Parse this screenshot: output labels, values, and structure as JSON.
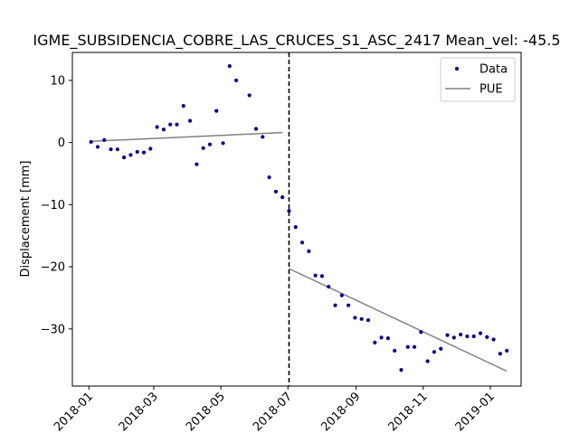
{
  "chart_data": {
    "type": "scatter",
    "title": "IGME_SUBSIDENCIA_COBRE_LAS_CRUCES_S1_ASC_2417     Mean_vel: -45.5",
    "xlabel": "",
    "ylabel": "Displacement [mm]",
    "x_ticks": [
      "2018-01",
      "2018-03",
      "2018-05",
      "2018-07",
      "2018-09",
      "2018-11",
      "2019-01"
    ],
    "y_ticks": [
      10,
      0,
      -10,
      -20,
      -30
    ],
    "xlim": [
      "2017-12-17",
      "2019-01-29"
    ],
    "ylim": [
      -39.2,
      14.5
    ],
    "grid": false,
    "legend_position": "top-right",
    "series": [
      {
        "name": "Data",
        "kind": "points",
        "color": "#00008b",
        "points": [
          [
            "2018-01-03",
            0.1
          ],
          [
            "2018-01-09",
            -0.7
          ],
          [
            "2018-01-15",
            0.4
          ],
          [
            "2018-01-21",
            -1.1
          ],
          [
            "2018-01-27",
            -1.1
          ],
          [
            "2018-02-02",
            -2.4
          ],
          [
            "2018-02-08",
            -2.0
          ],
          [
            "2018-02-14",
            -1.5
          ],
          [
            "2018-02-20",
            -1.6
          ],
          [
            "2018-02-26",
            -1.0
          ],
          [
            "2018-03-04",
            2.5
          ],
          [
            "2018-03-10",
            2.1
          ],
          [
            "2018-03-16",
            2.9
          ],
          [
            "2018-03-22",
            2.9
          ],
          [
            "2018-03-28",
            5.9
          ],
          [
            "2018-04-03",
            3.5
          ],
          [
            "2018-04-09",
            -3.5
          ],
          [
            "2018-04-15",
            -0.9
          ],
          [
            "2018-04-21",
            -0.3
          ],
          [
            "2018-04-27",
            5.1
          ],
          [
            "2018-05-03",
            -0.1
          ],
          [
            "2018-05-09",
            12.3
          ],
          [
            "2018-05-15",
            10.0
          ],
          [
            "2018-05-27",
            7.6
          ],
          [
            "2018-06-02",
            2.2
          ],
          [
            "2018-06-08",
            0.9
          ],
          [
            "2018-06-14",
            -5.6
          ],
          [
            "2018-06-20",
            -7.9
          ],
          [
            "2018-06-26",
            -8.8
          ],
          [
            "2018-07-02",
            -11.0
          ],
          [
            "2018-07-08",
            -13.6
          ],
          [
            "2018-07-14",
            -16.1
          ],
          [
            "2018-07-20",
            -17.5
          ],
          [
            "2018-07-26",
            -21.4
          ],
          [
            "2018-08-01",
            -21.5
          ],
          [
            "2018-08-07",
            -23.2
          ],
          [
            "2018-08-13",
            -26.2
          ],
          [
            "2018-08-19",
            -24.6
          ],
          [
            "2018-08-25",
            -26.2
          ],
          [
            "2018-08-31",
            -28.2
          ],
          [
            "2018-09-06",
            -28.4
          ],
          [
            "2018-09-12",
            -28.6
          ],
          [
            "2018-09-18",
            -32.2
          ],
          [
            "2018-09-24",
            -31.4
          ],
          [
            "2018-09-30",
            -31.5
          ],
          [
            "2018-10-06",
            -33.5
          ],
          [
            "2018-10-12",
            -36.6
          ],
          [
            "2018-10-18",
            -32.9
          ],
          [
            "2018-10-24",
            -32.9
          ],
          [
            "2018-10-30",
            -30.5
          ],
          [
            "2018-11-05",
            -35.2
          ],
          [
            "2018-11-11",
            -33.7
          ],
          [
            "2018-11-17",
            -33.2
          ],
          [
            "2018-11-23",
            -31.0
          ],
          [
            "2018-11-29",
            -31.4
          ],
          [
            "2018-12-05",
            -30.9
          ],
          [
            "2018-12-11",
            -31.2
          ],
          [
            "2018-12-17",
            -31.2
          ],
          [
            "2018-12-23",
            -30.7
          ],
          [
            "2018-12-29",
            -31.3
          ],
          [
            "2019-01-04",
            -31.7
          ],
          [
            "2019-01-10",
            -34.0
          ],
          [
            "2019-01-16",
            -33.5
          ]
        ]
      },
      {
        "name": "PUE",
        "kind": "lines",
        "color": "#808080",
        "segments": [
          [
            [
              "2018-01-03",
              0.2
            ],
            [
              "2018-06-26",
              1.6
            ]
          ],
          [
            [
              "2018-07-02",
              -20.3
            ],
            [
              "2019-01-16",
              -36.8
            ]
          ]
        ]
      }
    ],
    "vline": {
      "x": "2018-07-02",
      "style": "dashed",
      "color": "#000000"
    }
  }
}
